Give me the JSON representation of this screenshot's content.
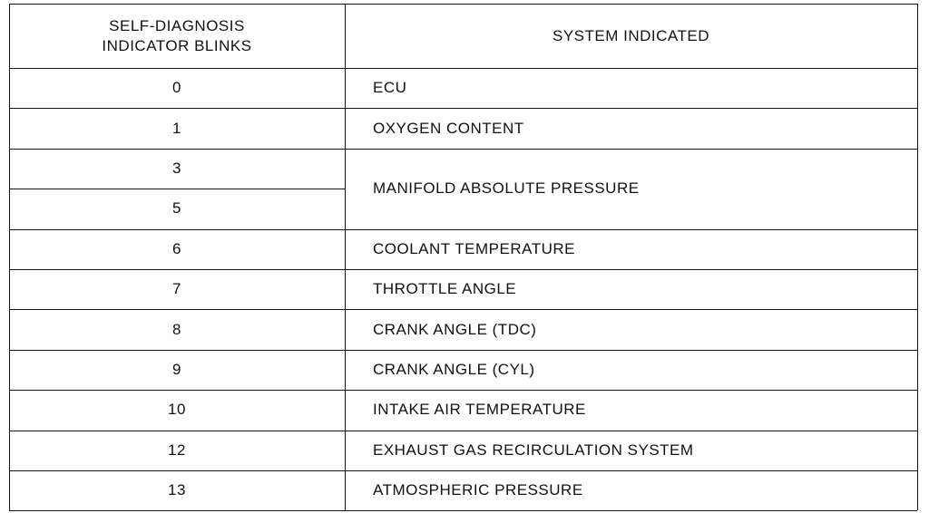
{
  "table": {
    "header": {
      "blinks": [
        "SELF-DIAGNOSIS",
        "INDICATOR BLINKS"
      ],
      "system": "SYSTEM INDICATED"
    },
    "rows": [
      {
        "blinks": [
          "0"
        ],
        "system": "ECU"
      },
      {
        "blinks": [
          "1"
        ],
        "system": "OXYGEN CONTENT"
      },
      {
        "blinks": [
          "3",
          "5"
        ],
        "system": "MANIFOLD ABSOLUTE PRESSURE"
      },
      {
        "blinks": [
          "6"
        ],
        "system": "COOLANT TEMPERATURE"
      },
      {
        "blinks": [
          "7"
        ],
        "system": "THROTTLE ANGLE"
      },
      {
        "blinks": [
          "8"
        ],
        "system": "CRANK ANGLE (TDC)"
      },
      {
        "blinks": [
          "9"
        ],
        "system": "CRANK ANGLE (CYL)"
      },
      {
        "blinks": [
          "10"
        ],
        "system": "INTAKE AIR TEMPERATURE"
      },
      {
        "blinks": [
          "12"
        ],
        "system": "EXHAUST GAS RECIRCULATION SYSTEM"
      },
      {
        "blinks": [
          "13"
        ],
        "system": "ATMOSPHERIC PRESSURE"
      }
    ]
  }
}
